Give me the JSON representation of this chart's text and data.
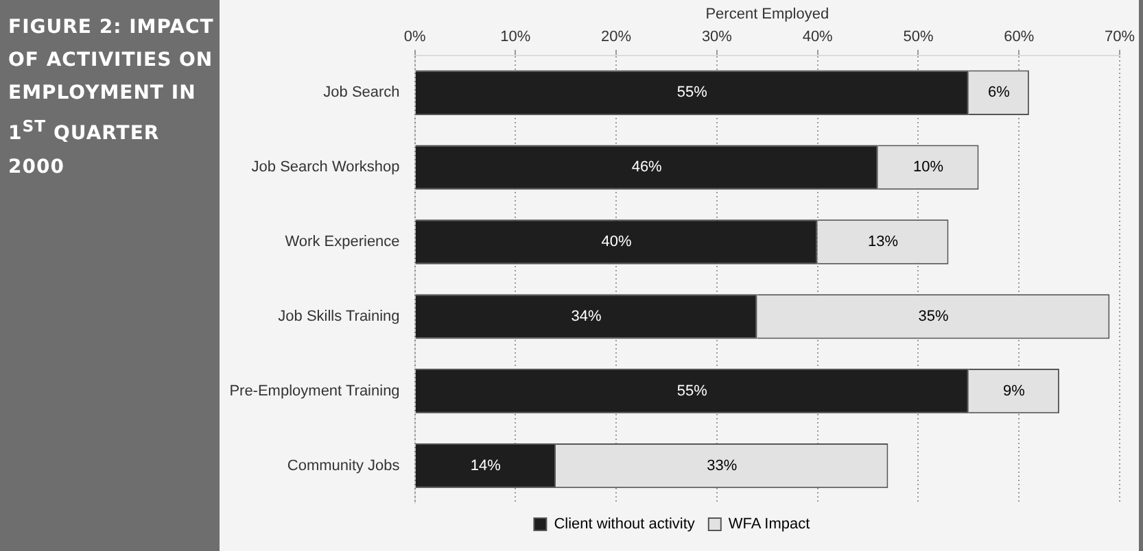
{
  "chart_data": {
    "type": "bar",
    "orientation": "horizontal",
    "stacked": true,
    "title": "FIGURE 2: IMPACT OF ACTIVITIES ON EMPLOYMENT IN 1$^{ST}$ QUARTER 2000",
    "xlabel": "Percent Employed",
    "categories": [
      "Job Search",
      "Job Search Workshop",
      "Work Experience",
      "Job Skills Training",
      "Pre-Employment Training",
      "Community Jobs"
    ],
    "series": [
      {
        "name": "Client without activity",
        "color": "#1e1e1e",
        "values": [
          55,
          46,
          40,
          34,
          55,
          14
        ],
        "value_labels": [
          "55%",
          "46%",
          "40%",
          "34%",
          "55%",
          "14%"
        ]
      },
      {
        "name": "WFA Impact",
        "color": "#e2e2e2",
        "values": [
          6,
          10,
          13,
          35,
          9,
          33
        ],
        "value_labels": [
          "6%",
          "10%",
          "13%",
          "35%",
          "9%",
          "33%"
        ]
      }
    ],
    "xlim": [
      0,
      70
    ],
    "xticks": [
      {
        "value": 0,
        "label": "0%"
      },
      {
        "value": 10,
        "label": "10%"
      },
      {
        "value": 20,
        "label": "20%"
      },
      {
        "value": 30,
        "label": "30%"
      },
      {
        "value": 40,
        "label": "40%"
      },
      {
        "value": 50,
        "label": "50%"
      },
      {
        "value": 60,
        "label": "60%"
      },
      {
        "value": 70,
        "label": "70%"
      }
    ],
    "grid": "x",
    "legend": "bottom"
  }
}
